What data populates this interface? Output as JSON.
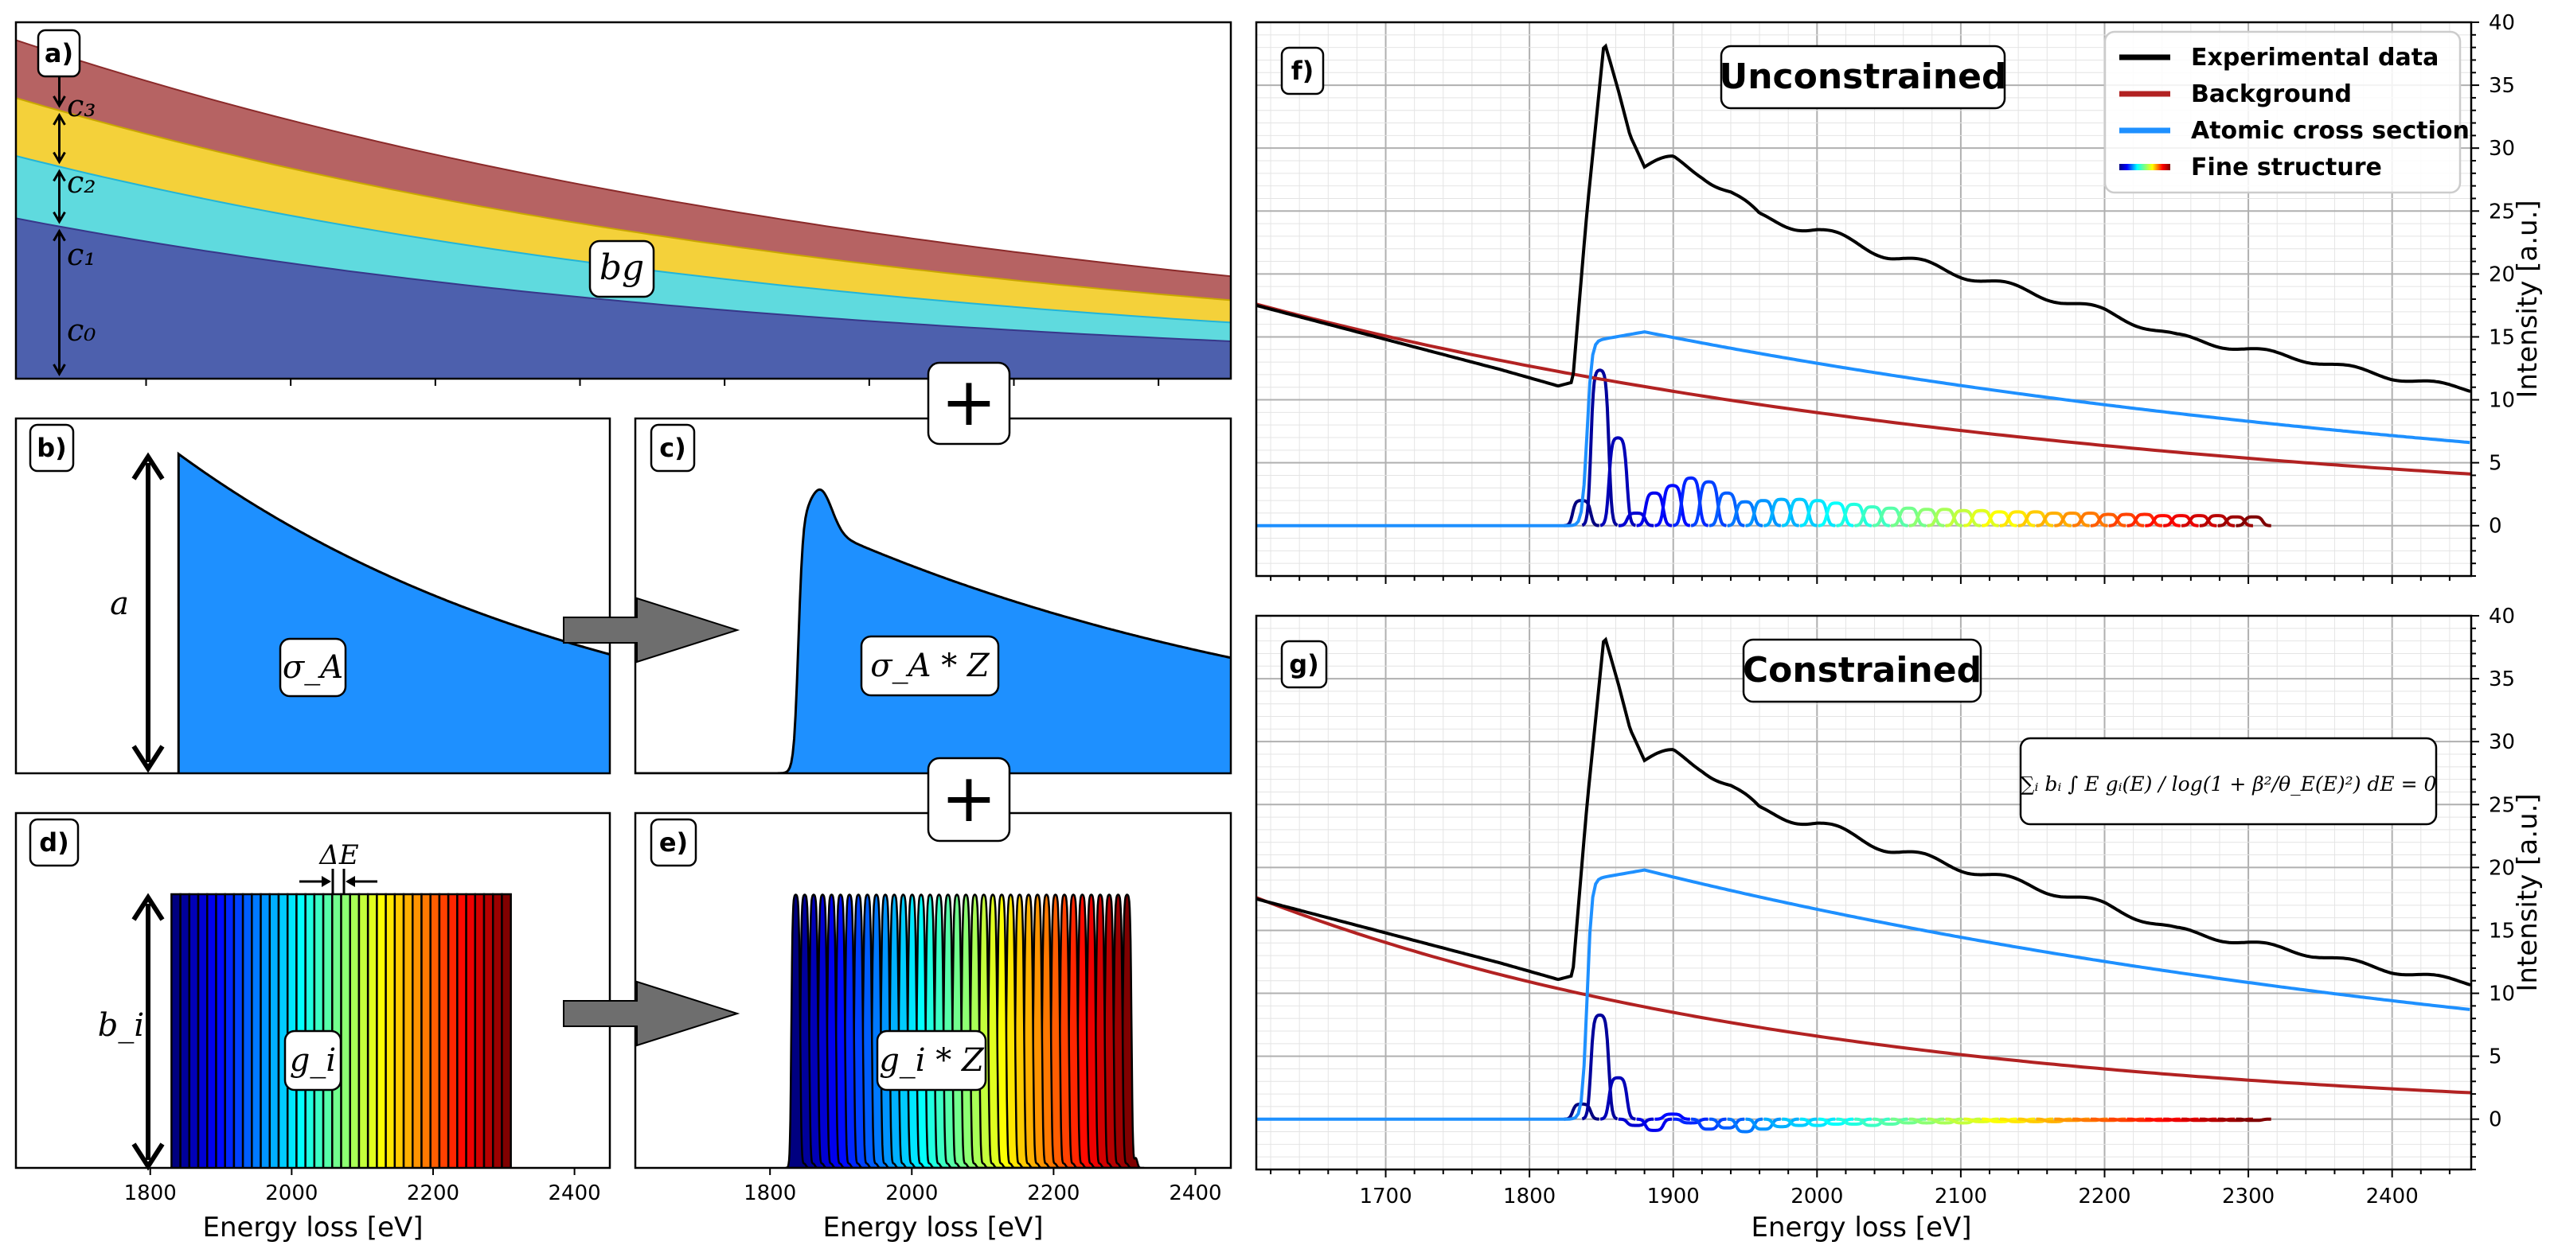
{
  "panels": {
    "a": {
      "tag": "a)",
      "components": [
        "c₃",
        "c₂",
        "c₁",
        "c₀"
      ],
      "label": "bg",
      "colors": [
        "#a94848",
        "#ffe433",
        "#44dcfb",
        "#4a4aa5"
      ]
    },
    "b": {
      "tag": "b)",
      "amp_label": "a",
      "label": "σ_A",
      "color": "#1e90ff"
    },
    "c": {
      "tag": "c)",
      "label": "σ_A * Z",
      "color": "#1e90ff"
    },
    "d": {
      "tag": "d)",
      "amp_label": "b_i",
      "label": "g_i",
      "delta_label": "ΔE"
    },
    "e": {
      "tag": "e)",
      "label": "g_i * Z"
    },
    "f": {
      "tag": "f)",
      "title": "Unconstrained"
    },
    "g": {
      "tag": "g)",
      "title": "Constrained",
      "equation": "∑ᵢ bᵢ ∫ E gᵢ(E) / log(1 + β²/θ_E(E)²) dE = 0"
    }
  },
  "plus_symbol": "+",
  "legend": [
    {
      "label": "Experimental data",
      "color": "#000000"
    },
    {
      "label": "Background",
      "color": "#b22222"
    },
    {
      "label": "Atomic cross section",
      "color": "#1e90ff"
    },
    {
      "label": "Fine structure",
      "color": "jet"
    }
  ],
  "chart_data": [
    {
      "type": "area",
      "panel": "a",
      "stacked": true,
      "xlim": [
        1610,
        2450
      ],
      "series": [
        {
          "name": "c0",
          "values_at_xlim": [
            18.0,
            4.2
          ]
        },
        {
          "name": "c1",
          "values_at_xlim": [
            25.0,
            6.3
          ]
        },
        {
          "name": "c2",
          "values_at_xlim": [
            31.5,
            8.8
          ]
        },
        {
          "name": "c3",
          "values_at_xlim": [
            38.0,
            11.5
          ]
        }
      ]
    },
    {
      "type": "area",
      "panel": "b",
      "xlabel": "",
      "xlim": [
        1610,
        2450
      ],
      "edge_onset": 1840,
      "peak": 1.0,
      "end_value": 0.37
    },
    {
      "type": "area",
      "panel": "c",
      "xlim": [
        1610,
        2450
      ],
      "edge_onset": 1840,
      "peak": 0.8,
      "end_value": 0.36
    },
    {
      "type": "bar",
      "panel": "d",
      "xlabel": "Energy loss [eV]",
      "xlim": [
        1610,
        2450
      ],
      "xticks": [
        1800,
        2000,
        2200,
        2400
      ],
      "window_start": 1830,
      "window_end": 2310,
      "count": 38,
      "height": 1.0
    },
    {
      "type": "area",
      "panel": "e",
      "xlabel": "Energy loss [eV]",
      "xlim": [
        1610,
        2450
      ],
      "xticks": [
        1800,
        2000,
        2200,
        2400
      ],
      "window_start": 1830,
      "window_end": 2310,
      "count": 38,
      "height": 1.0
    },
    {
      "type": "line",
      "panel": "f",
      "title": "Unconstrained",
      "xlabel": "",
      "ylabel": "Intensity [a.u.]",
      "xlim": [
        1610,
        2455
      ],
      "ylim": [
        -4,
        40
      ],
      "yticks": [
        0,
        5,
        10,
        15,
        20,
        25,
        30,
        35,
        40
      ],
      "experimental": {
        "x": [
          1610,
          1700,
          1780,
          1820,
          1830,
          1840,
          1852,
          1862,
          1870,
          1880,
          1900,
          1920,
          1940,
          1960,
          1980,
          2000,
          2050,
          2100,
          2150,
          2200,
          2250,
          2300,
          2350,
          2400,
          2455
        ],
        "y": [
          17.5,
          14.8,
          12.4,
          11.1,
          11.4,
          25.0,
          38.5,
          34.5,
          31.0,
          28.5,
          29.0,
          28.0,
          26.5,
          24.5,
          24.0,
          23.5,
          21.5,
          20.0,
          18.5,
          17.0,
          15.0,
          14.0,
          13.0,
          11.8,
          10.8
        ]
      },
      "background": {
        "a": 17.6,
        "b": 4.1
      },
      "cross_section": {
        "onset": 1840,
        "peak": 15.4,
        "end": 6.6
      },
      "fine_structure": {
        "count": 38,
        "start": 1830,
        "end": 2310,
        "amps": [
          2.0,
          12.4,
          7.0,
          1.0,
          2.6,
          3.2,
          3.8,
          3.5,
          2.6,
          1.9,
          2.0,
          2.1,
          2.1,
          2.0,
          1.8,
          1.7,
          1.5,
          1.4,
          1.4,
          1.3,
          1.3,
          1.2,
          1.2,
          1.1,
          1.1,
          1.1,
          1.0,
          1.0,
          1.0,
          0.9,
          0.9,
          0.9,
          0.8,
          0.8,
          0.8,
          0.8,
          0.7,
          0.7
        ]
      }
    },
    {
      "type": "line",
      "panel": "g",
      "title": "Constrained",
      "xlabel": "Energy loss [eV]",
      "ylabel": "Intensity [a.u.]",
      "xlim": [
        1610,
        2455
      ],
      "ylim": [
        -4,
        40
      ],
      "xticks": [
        1700,
        1800,
        1900,
        2000,
        2100,
        2200,
        2300,
        2400
      ],
      "yticks": [
        0,
        5,
        10,
        15,
        20,
        25,
        30,
        35,
        40
      ],
      "experimental": {
        "x": [
          1610,
          1700,
          1780,
          1820,
          1830,
          1840,
          1852,
          1862,
          1870,
          1880,
          1900,
          1920,
          1940,
          1960,
          1980,
          2000,
          2050,
          2100,
          2150,
          2200,
          2250,
          2300,
          2350,
          2400,
          2455
        ],
        "y": [
          17.5,
          14.8,
          12.4,
          11.1,
          11.4,
          25.0,
          38.5,
          34.5,
          31.0,
          28.5,
          29.0,
          28.0,
          26.5,
          24.5,
          24.0,
          23.5,
          21.5,
          20.0,
          18.5,
          17.0,
          15.0,
          14.0,
          13.0,
          11.8,
          10.8
        ]
      },
      "background": {
        "a": 17.6,
        "b": 2.1
      },
      "cross_section": {
        "onset": 1840,
        "peak": 19.8,
        "end": 8.7
      },
      "fine_structure": {
        "count": 38,
        "start": 1830,
        "end": 2310,
        "amps": [
          1.2,
          8.3,
          3.3,
          -0.5,
          -0.9,
          0.4,
          -0.3,
          -0.8,
          -0.7,
          -1.0,
          -0.8,
          -0.6,
          -0.5,
          -0.5,
          -0.4,
          -0.4,
          -0.5,
          -0.4,
          -0.3,
          -0.3,
          -0.3,
          -0.3,
          -0.2,
          -0.2,
          -0.2,
          -0.2,
          -0.2,
          -0.1,
          -0.1,
          -0.1,
          -0.1,
          -0.1,
          -0.1,
          -0.1,
          -0.1,
          -0.1,
          -0.1,
          -0.1
        ]
      }
    }
  ],
  "ticks": {
    "de": [
      "1800",
      "2000",
      "2200",
      "2400"
    ],
    "g": [
      "1700",
      "1800",
      "1900",
      "2000",
      "2100",
      "2200",
      "2300",
      "2400"
    ],
    "y": [
      "0",
      "5",
      "10",
      "15",
      "20",
      "25",
      "30",
      "35",
      "40"
    ]
  },
  "axis": {
    "xlabel": "Energy loss [eV]",
    "ylabel": "Intensity [a.u.]"
  }
}
